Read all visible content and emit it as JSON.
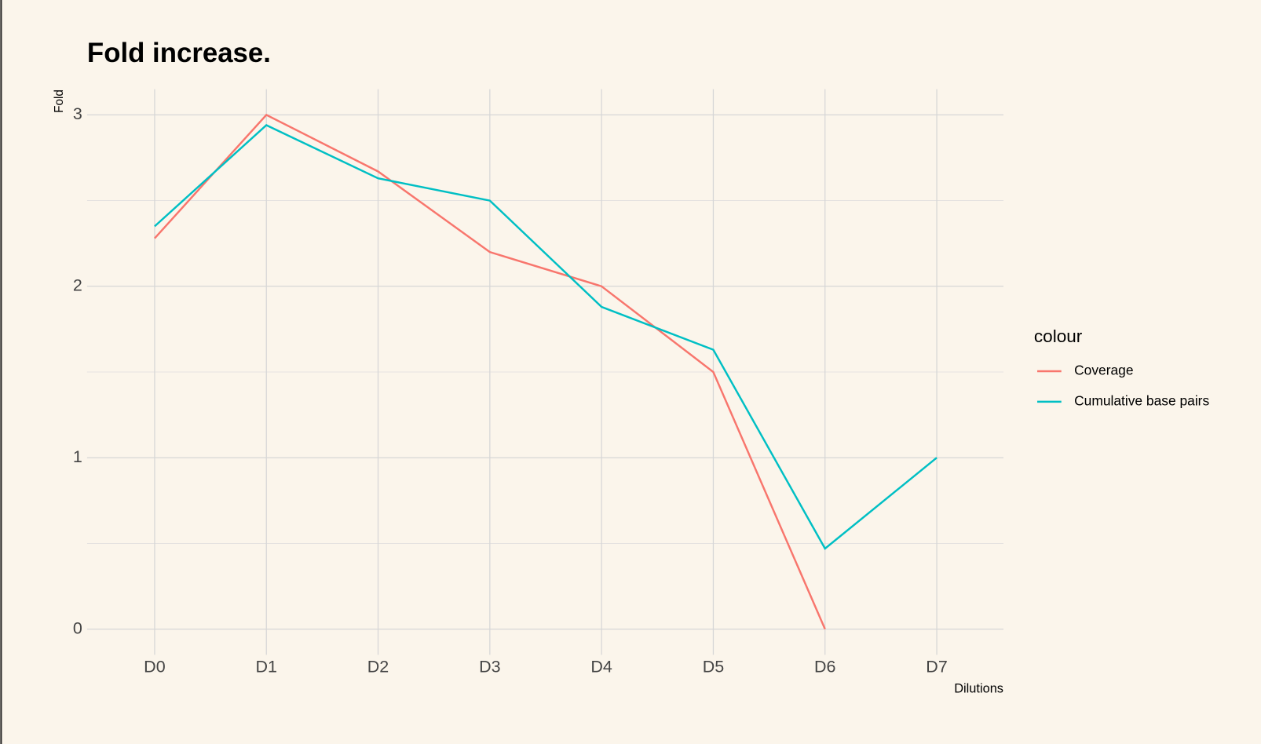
{
  "chart_data": {
    "type": "line",
    "title": "Fold increase.",
    "x_label": "Dilutions",
    "y_label": "Fold",
    "categories": [
      "D0",
      "D1",
      "D2",
      "D3",
      "D4",
      "D5",
      "D6",
      "D7"
    ],
    "series": [
      {
        "name": "Coverage",
        "color": "#f8766d",
        "values": [
          2.28,
          3.0,
          2.67,
          2.2,
          2.0,
          1.5,
          0.0,
          null
        ]
      },
      {
        "name": "Cumulative base pairs",
        "color": "#00bfc4",
        "values": [
          2.35,
          2.94,
          2.63,
          2.5,
          1.88,
          1.63,
          0.47,
          1.0
        ]
      }
    ],
    "ylim": [
      -0.15,
      3.15
    ],
    "yticks": [
      0,
      1,
      2,
      3
    ],
    "minor_yticks": [
      0.5,
      1.5,
      2.5
    ],
    "grid": true,
    "legend_title": "colour",
    "legend": "right"
  }
}
